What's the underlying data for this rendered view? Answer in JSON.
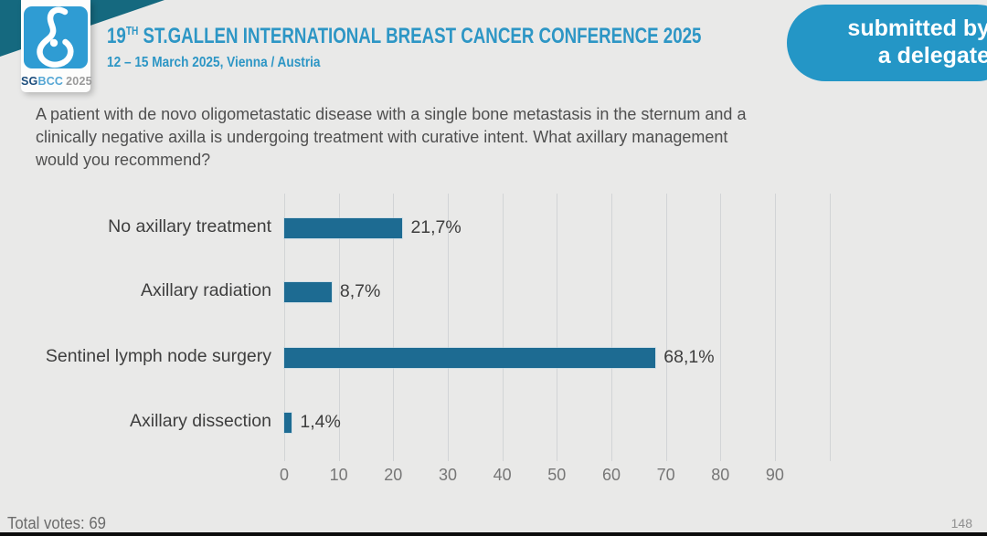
{
  "slide": {
    "header": {
      "logo": {
        "icon": "sgbcc-breast-icon",
        "text_sg": "SG",
        "text_bcc": "BCC",
        "text_year": "2025"
      },
      "title_number": "19",
      "title_ordinal": "TH",
      "title_rest": " ST.GALLEN INTERNATIONAL BREAST CANCER CONFERENCE 2025",
      "subtitle": "12 – 15 March 2025, Vienna / Austria"
    },
    "badge": {
      "line1": "submitted by",
      "line2": "a delegate"
    },
    "question_lines": [
      "A patient with de novo oligometastatic disease with a single bone metastasis in the sternum and a",
      "clinically negative axilla is undergoing treatment with curative intent. What axillary management",
      "would you recommend?"
    ],
    "footer": {
      "total_votes": "Total votes: 69",
      "page_number": "148"
    }
  },
  "chart_data": {
    "type": "bar",
    "orientation": "horizontal",
    "title": "",
    "xlabel": "",
    "ylabel": "",
    "categories": [
      "No axillary treatment",
      "Axillary radiation",
      "Sentinel lymph node surgery",
      "Axillary dissection"
    ],
    "values": [
      21.7,
      8.7,
      68.1,
      1.4
    ],
    "value_labels": [
      "21,7%",
      "8,7%",
      "68,1%",
      "1,4%"
    ],
    "x_ticks": [
      0,
      10,
      20,
      30,
      40,
      50,
      60,
      70,
      80,
      90
    ],
    "xlim": [
      0,
      100
    ],
    "grid": true,
    "legend": false,
    "bar_color": "#1d6b92"
  },
  "colors": {
    "slide_background": "#e9e9e8",
    "header_band": "#f8f8f6",
    "teal_wedge": "#15697f",
    "title_blue": "#2d96c5",
    "badge_blue": "#2496c6",
    "logo_blue": "#2f9cd3",
    "bar_teal": "#1d6b92",
    "gridline": "#d2d4d6",
    "text_dark": "#3e3e3e",
    "tick_gray": "#767676"
  }
}
